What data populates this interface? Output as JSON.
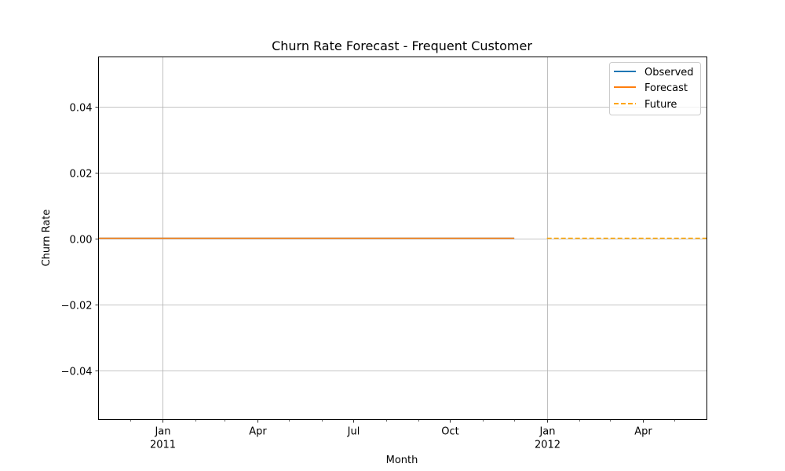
{
  "chart_data": {
    "type": "line",
    "title": "Churn Rate Forecast - Frequent Customer",
    "xlabel": "Month",
    "ylabel": "Churn Rate",
    "xlim": [
      "2010-11-01",
      "2012-06-01"
    ],
    "ylim": [
      -0.055,
      0.055
    ],
    "yticks": [
      -0.04,
      -0.02,
      0.0,
      0.02,
      0.04
    ],
    "ytick_labels": [
      "−0.04",
      "−0.02",
      "0.00",
      "0.02",
      "0.04"
    ],
    "xticks": [
      {
        "date": "2011-01-01",
        "label": "Jan",
        "sublabel": "2011"
      },
      {
        "date": "2011-04-01",
        "label": "Apr",
        "sublabel": ""
      },
      {
        "date": "2011-07-01",
        "label": "Jul",
        "sublabel": ""
      },
      {
        "date": "2011-10-01",
        "label": "Oct",
        "sublabel": ""
      },
      {
        "date": "2012-01-01",
        "label": "Jan",
        "sublabel": "2012"
      },
      {
        "date": "2012-04-01",
        "label": "Apr",
        "sublabel": ""
      }
    ],
    "minor_ticks": [
      "2010-12-01",
      "2011-02-01",
      "2011-03-01",
      "2011-05-01",
      "2011-06-01",
      "2011-08-01",
      "2011-09-01",
      "2011-11-01",
      "2011-12-01",
      "2012-02-01",
      "2012-03-01",
      "2012-05-01"
    ],
    "grid_dates": [
      "2011-01-01",
      "2012-01-01"
    ],
    "grid": true,
    "legend": "top-right",
    "series": [
      {
        "name": "Observed",
        "color": "#1f77b4",
        "style": "solid",
        "x": [
          "2010-11-01",
          "2010-12-01",
          "2011-01-01",
          "2011-02-01",
          "2011-03-01",
          "2011-04-01",
          "2011-05-01",
          "2011-06-01",
          "2011-07-01",
          "2011-08-01",
          "2011-09-01",
          "2011-10-01",
          "2011-11-01",
          "2011-12-01"
        ],
        "y": [
          0,
          0,
          0,
          0,
          0,
          0,
          0,
          0,
          0,
          0,
          0,
          0,
          0,
          0
        ]
      },
      {
        "name": "Forecast",
        "color": "#ff7f0e",
        "style": "solid",
        "x": [
          "2010-11-01",
          "2010-12-01",
          "2011-01-01",
          "2011-02-01",
          "2011-03-01",
          "2011-04-01",
          "2011-05-01",
          "2011-06-01",
          "2011-07-01",
          "2011-08-01",
          "2011-09-01",
          "2011-10-01",
          "2011-11-01",
          "2011-12-01"
        ],
        "y": [
          0,
          0,
          0,
          0,
          0,
          0,
          0,
          0,
          0,
          0,
          0,
          0,
          0,
          0
        ]
      },
      {
        "name": "Future",
        "color": "#ffa500",
        "style": "dashed",
        "x": [
          "2012-01-01",
          "2012-02-01",
          "2012-03-01",
          "2012-04-01",
          "2012-05-01",
          "2012-06-01"
        ],
        "y": [
          0,
          0,
          0,
          0,
          0,
          0
        ]
      }
    ]
  }
}
